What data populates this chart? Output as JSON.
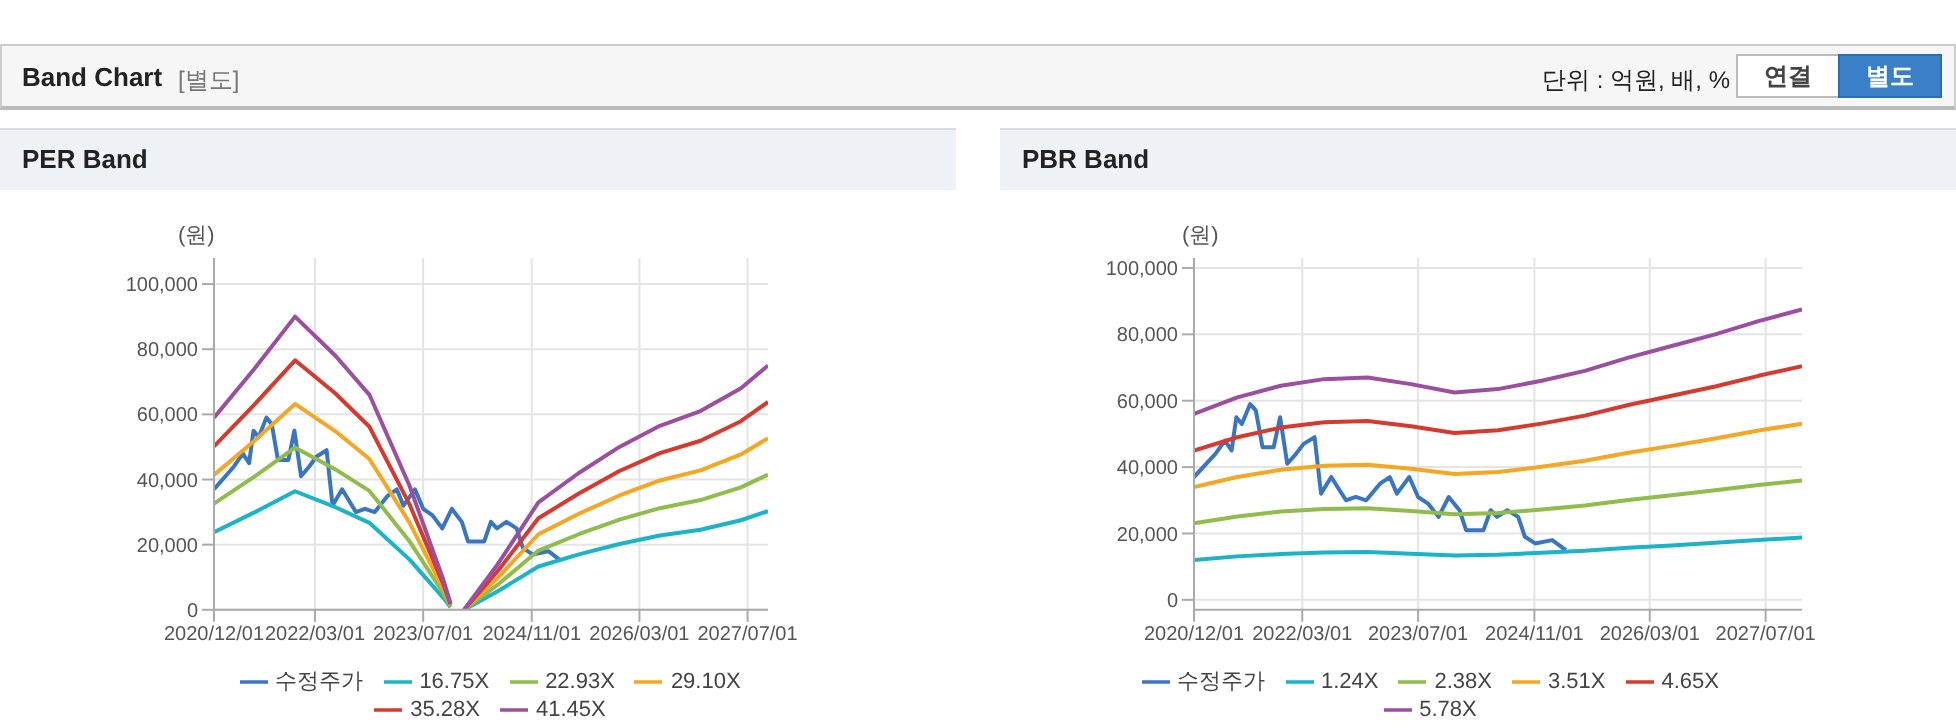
{
  "chart_data": [
    {
      "type": "line",
      "title": "PER Band",
      "ylabel": "(원)",
      "annotations": [
        "Band Chart",
        "[별도]",
        "단위 : 억원, 배, %",
        "연결",
        "별도"
      ],
      "grid": true,
      "legend": "bottom",
      "marker": "none",
      "line_style": "solid",
      "xlim": [
        "2020-12-01",
        "2027-10-01"
      ],
      "xticks": [
        {
          "value": "2020-12-01",
          "label": "2020/12/01"
        },
        {
          "value": "2022-03-01",
          "label": "2022/03/01"
        },
        {
          "value": "2023-07-01",
          "label": "2023/07/01"
        },
        {
          "value": "2024-11-01",
          "label": "2024/11/01"
        },
        {
          "value": "2026-03-01",
          "label": "2026/03/01"
        },
        {
          "value": "2027-07-01",
          "label": "2027/07/01"
        }
      ],
      "ylim": [
        0,
        108000
      ],
      "yticks": [
        {
          "value": 0,
          "label": "0"
        },
        {
          "value": 20000,
          "label": "20,000"
        },
        {
          "value": 40000,
          "label": "40,000"
        },
        {
          "value": 60000,
          "label": "60,000"
        },
        {
          "value": 80000,
          "label": "80,000"
        },
        {
          "value": 100000,
          "label": "100,000"
        }
      ],
      "series": [
        {
          "name": "수정주가",
          "color": "#3a75c4",
          "x": [
            "2020-12-01",
            "2021-03-01",
            "2021-04-10",
            "2021-05-08",
            "2021-05-28",
            "2021-06-20",
            "2021-07-25",
            "2021-08-18",
            "2021-09-15",
            "2021-11-01",
            "2021-11-28",
            "2021-12-28",
            "2022-02-03",
            "2022-03-07",
            "2022-04-22",
            "2022-05-19",
            "2022-07-01",
            "2022-09-01",
            "2022-10-12",
            "2022-11-25",
            "2023-01-22",
            "2023-03-04",
            "2023-04-03",
            "2023-05-25",
            "2023-07-01",
            "2023-08-12",
            "2023-09-25",
            "2023-11-07",
            "2023-12-22",
            "2024-01-19",
            "2024-04-01",
            "2024-05-01",
            "2024-05-28",
            "2024-07-10",
            "2024-08-25",
            "2024-09-22",
            "2024-11-04",
            "2025-01-15",
            "2025-03-13"
          ],
          "values": [
            37000,
            44000,
            48000,
            45000,
            55000,
            53000,
            59000,
            57000,
            46000,
            46000,
            55000,
            41000,
            44000,
            47000,
            49000,
            32000,
            37000,
            30000,
            31000,
            30000,
            35000,
            37000,
            32000,
            37000,
            31000,
            29000,
            25000,
            31000,
            27000,
            21000,
            21000,
            27000,
            25000,
            27000,
            25000,
            19000,
            17000,
            18000,
            15000
          ]
        },
        {
          "name": "16.75X",
          "color": "#1ab3c8",
          "x": [
            "2020-12-01",
            "2021-06-01",
            "2021-12-01",
            "2022-06-01",
            "2022-11-01",
            "2023-05-01",
            "2023-10-01",
            "2023-11-01",
            "2023-12-01",
            "2024-01-01",
            "2024-06-01",
            "2024-12-01",
            "2025-06-01",
            "2025-12-01",
            "2026-06-01",
            "2026-12-01",
            "2027-06-01",
            "2027-10-01"
          ],
          "values": [
            23800,
            29900,
            36400,
            31500,
            26700,
            15400,
            3600,
            800,
            null,
            0,
            5700,
            13300,
            17000,
            20200,
            22800,
            24600,
            27500,
            30300
          ]
        },
        {
          "name": "22.93X",
          "color": "#8fbc4a",
          "x": [
            "2020-12-01",
            "2021-06-01",
            "2021-12-01",
            "2022-06-01",
            "2022-11-01",
            "2023-05-01",
            "2023-10-01",
            "2023-11-01",
            "2023-12-01",
            "2024-01-01",
            "2024-06-01",
            "2024-12-01",
            "2025-06-01",
            "2025-12-01",
            "2026-06-01",
            "2026-12-01",
            "2027-06-01",
            "2027-10-01"
          ],
          "values": [
            32600,
            40900,
            49800,
            43100,
            36500,
            21000,
            5000,
            1100,
            null,
            0,
            7700,
            18200,
            23200,
            27700,
            31200,
            33700,
            37600,
            41500
          ]
        },
        {
          "name": "29.10X",
          "color": "#f5a623",
          "x": [
            "2020-12-01",
            "2021-06-01",
            "2021-12-01",
            "2022-06-01",
            "2022-11-01",
            "2023-05-01",
            "2023-10-01",
            "2023-11-01",
            "2023-12-01",
            "2024-01-01",
            "2024-06-01",
            "2024-12-01",
            "2025-06-01",
            "2025-12-01",
            "2026-06-01",
            "2026-12-01",
            "2027-06-01",
            "2027-10-01"
          ],
          "values": [
            41400,
            51900,
            63200,
            54800,
            46300,
            26700,
            6300,
            1400,
            null,
            0,
            9800,
            23200,
            29500,
            35100,
            39700,
            42800,
            47700,
            52700
          ]
        },
        {
          "name": "35.28X",
          "color": "#d63a2f",
          "x": [
            "2020-12-01",
            "2021-06-01",
            "2021-12-01",
            "2022-06-01",
            "2022-11-01",
            "2023-05-01",
            "2023-10-01",
            "2023-11-01",
            "2023-12-01",
            "2024-01-01",
            "2024-06-01",
            "2024-12-01",
            "2025-06-01",
            "2025-12-01",
            "2026-06-01",
            "2026-12-01",
            "2027-06-01",
            "2027-10-01"
          ],
          "values": [
            50200,
            63000,
            76600,
            66400,
            56200,
            32300,
            7700,
            1700,
            null,
            0,
            11900,
            28100,
            35700,
            42600,
            48100,
            51900,
            57900,
            63800
          ]
        },
        {
          "name": "41.45X",
          "color": "#9b4f9e",
          "x": [
            "2020-12-01",
            "2021-06-01",
            "2021-12-01",
            "2022-06-01",
            "2022-11-01",
            "2023-05-01",
            "2023-10-01",
            "2023-11-01",
            "2023-12-01",
            "2024-01-01",
            "2024-06-01",
            "2024-12-01",
            "2025-06-01",
            "2025-12-01",
            "2026-06-01",
            "2026-12-01",
            "2027-06-01",
            "2027-10-01"
          ],
          "values": [
            59000,
            74000,
            90000,
            78000,
            66000,
            38000,
            9000,
            2000,
            null,
            0,
            14000,
            33000,
            42000,
            50000,
            56500,
            61000,
            68000,
            75000
          ]
        }
      ]
    },
    {
      "type": "line",
      "title": "PBR Band",
      "ylabel": "(원)",
      "grid": true,
      "legend": "bottom",
      "marker": "none",
      "line_style": "solid",
      "xlim": [
        "2020-12-01",
        "2027-12-01"
      ],
      "xticks": [
        {
          "value": "2020-12-01",
          "label": "2020/12/01"
        },
        {
          "value": "2022-03-01",
          "label": "2022/03/01"
        },
        {
          "value": "2023-07-01",
          "label": "2023/07/01"
        },
        {
          "value": "2024-11-01",
          "label": "2024/11/01"
        },
        {
          "value": "2026-03-01",
          "label": "2026/03/01"
        },
        {
          "value": "2027-07-01",
          "label": "2027/07/01"
        }
      ],
      "ylim": [
        -3000,
        103000
      ],
      "yticks": [
        {
          "value": 0,
          "label": "0"
        },
        {
          "value": 20000,
          "label": "20,000"
        },
        {
          "value": 40000,
          "label": "40,000"
        },
        {
          "value": 60000,
          "label": "60,000"
        },
        {
          "value": 80000,
          "label": "80,000"
        },
        {
          "value": 100000,
          "label": "100,000"
        }
      ],
      "series": [
        {
          "name": "수정주가",
          "color": "#3a75c4",
          "x": [
            "2020-12-01",
            "2021-03-01",
            "2021-04-10",
            "2021-05-08",
            "2021-05-28",
            "2021-06-20",
            "2021-07-25",
            "2021-08-18",
            "2021-09-15",
            "2021-11-01",
            "2021-11-28",
            "2021-12-28",
            "2022-02-03",
            "2022-03-07",
            "2022-04-22",
            "2022-05-19",
            "2022-07-01",
            "2022-09-01",
            "2022-10-12",
            "2022-11-25",
            "2023-01-22",
            "2023-03-04",
            "2023-04-03",
            "2023-05-25",
            "2023-07-01",
            "2023-08-12",
            "2023-09-25",
            "2023-11-07",
            "2023-12-22",
            "2024-01-19",
            "2024-04-01",
            "2024-05-01",
            "2024-05-28",
            "2024-07-10",
            "2024-08-25",
            "2024-09-22",
            "2024-11-04",
            "2025-01-15",
            "2025-03-13"
          ],
          "values": [
            37000,
            44000,
            48000,
            45000,
            55000,
            53000,
            59000,
            57000,
            46000,
            46000,
            55000,
            41000,
            44000,
            47000,
            49000,
            32000,
            37000,
            30000,
            31000,
            30000,
            35000,
            37000,
            32000,
            37000,
            31000,
            29000,
            25000,
            31000,
            27000,
            21000,
            21000,
            27000,
            25000,
            27000,
            25000,
            19000,
            17000,
            18000,
            15000
          ]
        },
        {
          "name": "1.24X",
          "color": "#1ab3c8",
          "x": [
            "2020-12-01",
            "2021-06-01",
            "2021-12-01",
            "2022-06-01",
            "2022-12-01",
            "2023-06-01",
            "2023-12-01",
            "2024-06-01",
            "2024-12-01",
            "2025-06-01",
            "2025-12-01",
            "2026-06-01",
            "2026-12-01",
            "2027-06-01",
            "2027-12-01"
          ],
          "values": [
            12000,
            13100,
            13800,
            14300,
            14400,
            13900,
            13400,
            13600,
            14200,
            14800,
            15700,
            16400,
            17200,
            18000,
            18800
          ]
        },
        {
          "name": "2.38X",
          "color": "#8fbc4a",
          "x": [
            "2020-12-01",
            "2021-06-01",
            "2021-12-01",
            "2022-06-01",
            "2022-12-01",
            "2023-06-01",
            "2023-12-01",
            "2024-06-01",
            "2024-12-01",
            "2025-06-01",
            "2025-12-01",
            "2026-06-01",
            "2026-12-01",
            "2027-06-01",
            "2027-12-01"
          ],
          "values": [
            23100,
            25100,
            26600,
            27400,
            27600,
            26800,
            25800,
            26200,
            27200,
            28400,
            30100,
            31500,
            33000,
            34600,
            36000
          ]
        },
        {
          "name": "3.51X",
          "color": "#f5a623",
          "x": [
            "2020-12-01",
            "2021-06-01",
            "2021-12-01",
            "2022-06-01",
            "2022-12-01",
            "2023-06-01",
            "2023-12-01",
            "2024-06-01",
            "2024-12-01",
            "2025-06-01",
            "2025-12-01",
            "2026-06-01",
            "2026-12-01",
            "2027-06-01",
            "2027-12-01"
          ],
          "values": [
            34000,
            37000,
            39200,
            40400,
            40700,
            39500,
            37900,
            38500,
            40100,
            41900,
            44300,
            46400,
            48600,
            51000,
            53100
          ]
        },
        {
          "name": "4.65X",
          "color": "#d63a2f",
          "x": [
            "2020-12-01",
            "2021-06-01",
            "2021-12-01",
            "2022-06-01",
            "2022-12-01",
            "2023-06-01",
            "2023-12-01",
            "2024-06-01",
            "2024-12-01",
            "2025-06-01",
            "2025-12-01",
            "2026-06-01",
            "2026-12-01",
            "2027-06-01",
            "2027-12-01"
          ],
          "values": [
            45000,
            49000,
            51900,
            53500,
            53900,
            52300,
            50300,
            51100,
            53100,
            55500,
            58700,
            61500,
            64300,
            67500,
            70400
          ]
        },
        {
          "name": "5.78X",
          "color": "#9b4f9e",
          "x": [
            "2020-12-01",
            "2021-06-01",
            "2021-12-01",
            "2022-06-01",
            "2022-12-01",
            "2023-06-01",
            "2023-12-01",
            "2024-06-01",
            "2024-12-01",
            "2025-06-01",
            "2025-12-01",
            "2026-06-01",
            "2026-12-01",
            "2027-06-01",
            "2027-12-01"
          ],
          "values": [
            56000,
            61000,
            64500,
            66500,
            67000,
            65000,
            62500,
            63500,
            66000,
            69000,
            73000,
            76500,
            80000,
            84000,
            87500
          ]
        }
      ]
    }
  ]
}
